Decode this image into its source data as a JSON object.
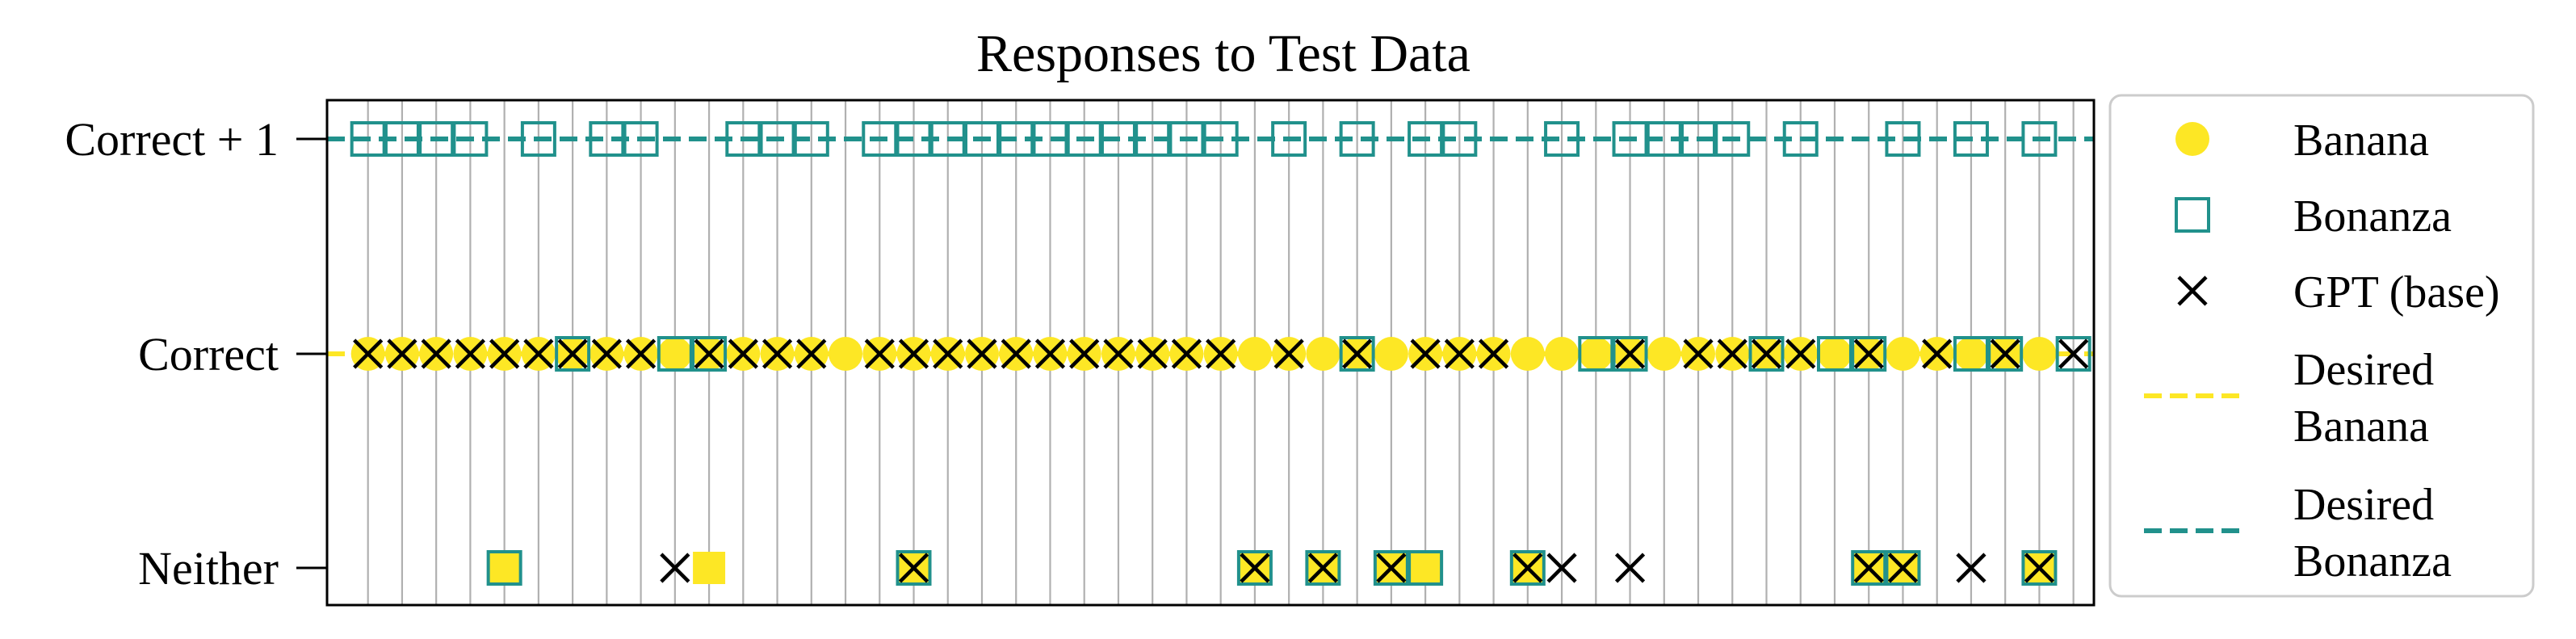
{
  "chart_data": {
    "type": "scatter",
    "title": "Responses to Test Data",
    "xlabel": "",
    "ylabel": "",
    "y_categories": [
      "Neither",
      "Correct",
      "Correct + 1"
    ],
    "x_count": 50,
    "xlim": [
      -1.2,
      50.6
    ],
    "grid": "vertical lines at each x",
    "legend_location": "outside right",
    "series": [
      {
        "name": "Banana",
        "marker": "circle",
        "color": "#fde725",
        "points": [
          [
            0,
            1
          ],
          [
            1,
            1
          ],
          [
            2,
            1
          ],
          [
            3,
            1
          ],
          [
            4,
            1
          ],
          [
            5,
            1
          ],
          [
            6,
            1
          ],
          [
            7,
            1
          ],
          [
            8,
            1
          ],
          [
            9,
            1
          ],
          [
            10,
            1
          ],
          [
            11,
            1
          ],
          [
            12,
            1
          ],
          [
            13,
            1
          ],
          [
            14,
            1
          ],
          [
            15,
            1
          ],
          [
            16,
            1
          ],
          [
            17,
            1
          ],
          [
            18,
            1
          ],
          [
            19,
            1
          ],
          [
            20,
            1
          ],
          [
            21,
            1
          ],
          [
            22,
            1
          ],
          [
            23,
            1
          ],
          [
            24,
            1
          ],
          [
            25,
            1
          ],
          [
            26,
            1
          ],
          [
            27,
            1
          ],
          [
            28,
            1
          ],
          [
            29,
            1
          ],
          [
            30,
            1
          ],
          [
            31,
            1
          ],
          [
            32,
            1
          ],
          [
            33,
            1
          ],
          [
            34,
            1
          ],
          [
            35,
            1
          ],
          [
            36,
            1
          ],
          [
            37,
            1
          ],
          [
            38,
            1
          ],
          [
            39,
            1
          ],
          [
            40,
            1
          ],
          [
            41,
            1
          ],
          [
            42,
            1
          ],
          [
            43,
            1
          ],
          [
            44,
            1
          ],
          [
            45,
            1
          ],
          [
            46,
            1
          ],
          [
            47,
            1
          ],
          [
            48,
            1
          ],
          [
            49,
            1
          ]
        ]
      },
      {
        "name": "Bonanza",
        "marker": "square-open",
        "color": "#21918c",
        "points": [
          [
            0,
            2
          ],
          [
            1,
            2
          ],
          [
            2,
            2
          ],
          [
            3,
            2
          ],
          [
            5,
            2
          ],
          [
            7,
            2
          ],
          [
            8,
            2
          ],
          [
            11,
            2
          ],
          [
            12,
            2
          ],
          [
            13,
            2
          ],
          [
            15,
            2
          ],
          [
            16,
            2
          ],
          [
            17,
            2
          ],
          [
            18,
            2
          ],
          [
            19,
            2
          ],
          [
            20,
            2
          ],
          [
            21,
            2
          ],
          [
            22,
            2
          ],
          [
            23,
            2
          ],
          [
            24,
            2
          ],
          [
            25,
            2
          ],
          [
            27,
            2
          ],
          [
            29,
            2
          ],
          [
            31,
            2
          ],
          [
            32,
            2
          ],
          [
            35,
            2
          ],
          [
            37,
            2
          ],
          [
            38,
            2
          ],
          [
            39,
            2
          ],
          [
            40,
            2
          ],
          [
            42,
            2
          ],
          [
            45,
            2
          ],
          [
            47,
            2
          ],
          [
            49,
            2
          ],
          [
            6,
            1
          ],
          [
            9,
            1
          ],
          [
            10,
            1
          ],
          [
            29,
            1
          ],
          [
            36,
            1
          ],
          [
            37,
            1
          ],
          [
            41,
            1
          ],
          [
            43,
            1
          ],
          [
            44,
            1
          ],
          [
            47,
            1
          ],
          [
            48,
            1
          ],
          [
            50,
            1
          ],
          [
            4,
            0
          ],
          [
            16,
            0
          ],
          [
            26,
            0
          ],
          [
            28,
            0
          ],
          [
            30,
            0
          ],
          [
            31,
            0
          ],
          [
            34,
            0
          ],
          [
            44,
            0
          ],
          [
            45,
            0
          ],
          [
            49,
            0
          ]
        ]
      },
      {
        "name": "GPT (base)",
        "marker": "x",
        "color": "#000000",
        "points": [
          [
            0,
            1
          ],
          [
            1,
            1
          ],
          [
            2,
            1
          ],
          [
            3,
            1
          ],
          [
            4,
            1
          ],
          [
            5,
            1
          ],
          [
            6,
            1
          ],
          [
            7,
            1
          ],
          [
            8,
            1
          ],
          [
            10,
            1
          ],
          [
            11,
            1
          ],
          [
            12,
            1
          ],
          [
            13,
            1
          ],
          [
            15,
            1
          ],
          [
            16,
            1
          ],
          [
            17,
            1
          ],
          [
            18,
            1
          ],
          [
            19,
            1
          ],
          [
            20,
            1
          ],
          [
            21,
            1
          ],
          [
            22,
            1
          ],
          [
            23,
            1
          ],
          [
            24,
            1
          ],
          [
            25,
            1
          ],
          [
            27,
            1
          ],
          [
            29,
            1
          ],
          [
            31,
            1
          ],
          [
            32,
            1
          ],
          [
            33,
            1
          ],
          [
            37,
            1
          ],
          [
            39,
            1
          ],
          [
            40,
            1
          ],
          [
            41,
            1
          ],
          [
            42,
            1
          ],
          [
            44,
            1
          ],
          [
            46,
            1
          ],
          [
            48,
            1
          ],
          [
            50,
            1
          ],
          [
            9,
            0
          ],
          [
            16,
            0
          ],
          [
            26,
            0
          ],
          [
            28,
            0
          ],
          [
            30,
            0
          ],
          [
            34,
            0
          ],
          [
            35,
            0
          ],
          [
            37,
            0
          ],
          [
            44,
            0
          ],
          [
            45,
            0
          ],
          [
            47,
            0
          ],
          [
            49,
            0
          ]
        ]
      },
      {
        "name": "Banana (Neither)",
        "marker": "circle",
        "color": "#fde725",
        "legend": false,
        "points": [
          [
            4,
            0
          ],
          [
            10,
            0
          ],
          [
            16,
            0
          ],
          [
            26,
            0
          ],
          [
            28,
            0
          ],
          [
            30,
            0
          ],
          [
            31,
            0
          ],
          [
            34,
            0
          ],
          [
            44,
            0
          ],
          [
            45,
            0
          ],
          [
            49,
            0
          ]
        ]
      }
    ],
    "reference_lines": [
      {
        "name": "Desired Banana",
        "legend_label": "Desired\nBanana",
        "y": 1,
        "style": "dashed",
        "color": "#fde725"
      },
      {
        "name": "Desired Bonanza",
        "legend_label": "Desired\nBonanza",
        "y": 2,
        "style": "dashed",
        "color": "#21918c"
      }
    ],
    "legend": [
      {
        "label": "Banana",
        "marker": "circle",
        "color": "#fde725"
      },
      {
        "label": "Bonanza",
        "marker": "square-open",
        "color": "#21918c"
      },
      {
        "label": "GPT (base)",
        "marker": "x",
        "color": "#000000"
      },
      {
        "label_line1": "Desired",
        "label_line2": "Banana",
        "marker": "dash",
        "color": "#fde725"
      },
      {
        "label_line1": "Desired",
        "label_line2": "Bonanza",
        "marker": "dash",
        "color": "#21918c"
      }
    ]
  }
}
